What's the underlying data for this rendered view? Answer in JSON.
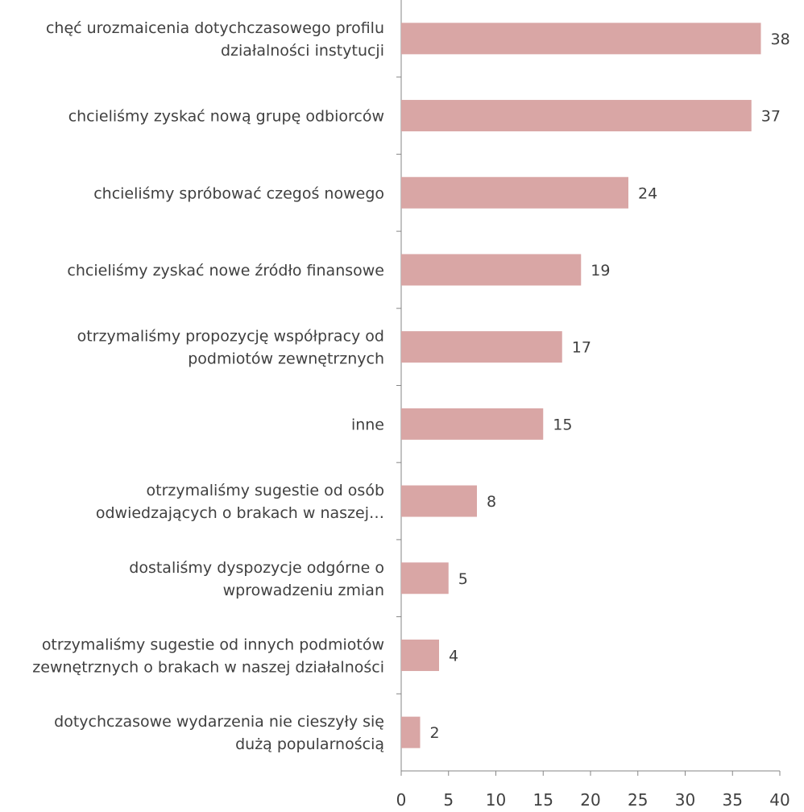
{
  "chart_data": {
    "type": "bar",
    "orientation": "horizontal",
    "categories": [
      [
        "chęć urozmaicenia dotychczasowego profilu",
        "działalności instytucji"
      ],
      [
        "chcieliśmy zyskać nową grupę odbiorców"
      ],
      [
        "chcieliśmy spróbować czegoś nowego"
      ],
      [
        "chcieliśmy zyskać nowe źródło finansowe"
      ],
      [
        "otrzymaliśmy propozycję współpracy od",
        "podmiotów zewnętrznych"
      ],
      [
        "inne"
      ],
      [
        "otrzymaliśmy sugestie od osób",
        "odwiedzających o brakach w naszej…"
      ],
      [
        "dostaliśmy dyspozycje odgórne o",
        "wprowadzeniu zmian"
      ],
      [
        "otrzymaliśmy sugestie od innych podmiotów",
        "zewnętrznych o brakach w naszej działalności"
      ],
      [
        "dotychczasowe wydarzenia nie cieszyły się",
        "dużą popularnością"
      ]
    ],
    "values": [
      38,
      37,
      24,
      19,
      17,
      15,
      8,
      5,
      4,
      2
    ],
    "value_labels": [
      "38",
      "37",
      "24",
      "19",
      "17",
      "15",
      "8",
      "5",
      "4",
      "2"
    ],
    "xlim": [
      0,
      40
    ],
    "xticks": [
      "0",
      "5",
      "10",
      "15",
      "20",
      "25",
      "30",
      "35",
      "40"
    ],
    "bar_color": "#d9a6a5",
    "grid": false,
    "legend": "none"
  }
}
